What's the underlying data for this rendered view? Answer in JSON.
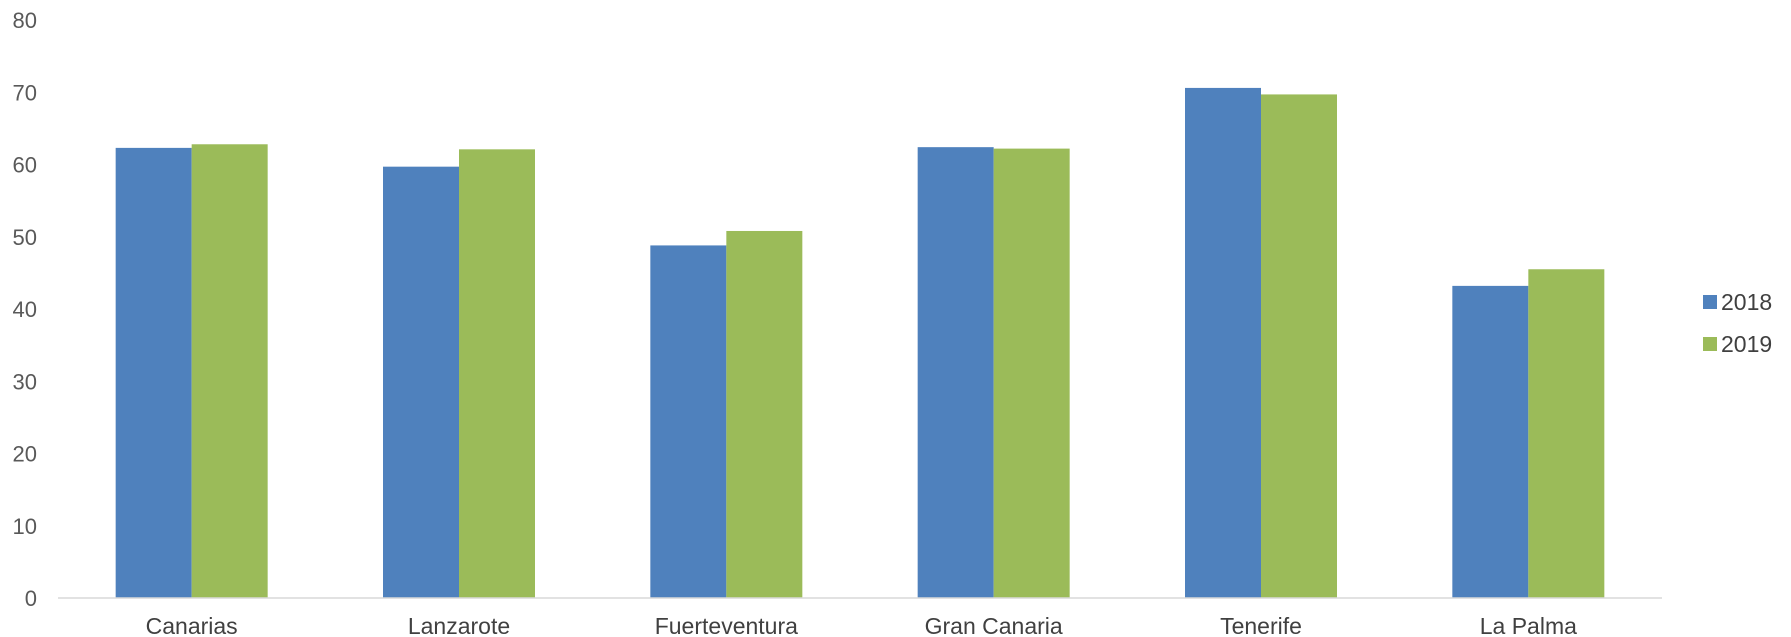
{
  "chart_data": {
    "type": "bar",
    "categories": [
      "Canarias",
      "Lanzarote",
      "Fuerteventura",
      "Gran Canaria",
      "Tenerife",
      "La Palma"
    ],
    "series": [
      {
        "name": "2018",
        "color": "#4f81bd",
        "values": [
          62.3,
          59.7,
          48.8,
          62.4,
          70.6,
          43.2
        ]
      },
      {
        "name": "2019",
        "color": "#9bbb59",
        "values": [
          62.8,
          62.1,
          50.8,
          62.2,
          69.7,
          45.5
        ]
      }
    ],
    "ylim": [
      0,
      80
    ],
    "yticks": [
      0,
      10,
      20,
      30,
      40,
      50,
      60,
      70,
      80
    ],
    "grid": false,
    "legend_position": "right"
  }
}
